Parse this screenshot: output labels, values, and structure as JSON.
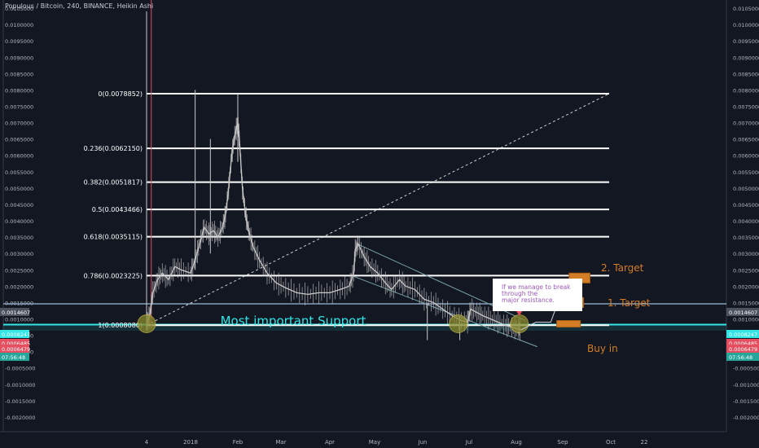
{
  "header": {
    "title": "Populous / Bitcoin, 240, BINANCE, Heikin Ashi"
  },
  "colors": {
    "background": "#131722",
    "text": "#b2b5be",
    "axis_line": "#363a45",
    "candle": "#c9c9c9",
    "fib_line": "#ffffff",
    "support": "#33e5e5",
    "target_box": "#d47d27",
    "channel": "#7aa3a7",
    "note_text": "#9b59b6",
    "label_bg": "#4c525e",
    "label_red": "#e44e5f",
    "label_green": "#26a69a",
    "marker": "#8a8a2a"
  },
  "axes": {
    "y_ticks": [
      "0.0105000",
      "0.0100000",
      "0.0095000",
      "0.0090000",
      "0.0085000",
      "0.0080000",
      "0.0075000",
      "0.0070000",
      "0.0065000",
      "0.0060000",
      "0.0055000",
      "0.0050000",
      "0.0045000",
      "0.0040000",
      "0.0035000",
      "0.0030000",
      "0.0025000",
      "0.0020000",
      "0.0015000",
      "0.0010000",
      "0.0005000",
      "0.0000000",
      "-0.0005000",
      "-0.0010000",
      "-0.0015000",
      "-0.0020000"
    ],
    "x_ticks": [
      "4",
      "2018",
      "Feb",
      "Mar",
      "Apr",
      "May",
      "Jun",
      "Jul",
      "Aug",
      "Sep",
      "Oct",
      "22"
    ],
    "price_labels": [
      "0.0014607",
      "0.0008247",
      "0.0006485",
      "0.0006479",
      "07:56:48"
    ]
  },
  "chart_data": {
    "type": "line",
    "xlabel": "",
    "ylabel": "",
    "ylim": [
      -0.00215,
      0.0106
    ],
    "x_domain": [
      "2017-12-04",
      "2018-10-22"
    ],
    "x_tick_dates": [
      "2017-12-04",
      "2018-01-01",
      "2018-02-01",
      "2018-03-01",
      "2018-04-01",
      "2018-05-01",
      "2018-06-01",
      "2018-07-01",
      "2018-08-01",
      "2018-09-01",
      "2018-10-01",
      "2018-10-22"
    ],
    "price_path": [
      [
        "2017-12-04",
        0.00085
      ],
      [
        "2017-12-06",
        0.0011
      ],
      [
        "2017-12-08",
        0.0018
      ],
      [
        "2017-12-11",
        0.0022
      ],
      [
        "2017-12-14",
        0.0024
      ],
      [
        "2017-12-18",
        0.0022
      ],
      [
        "2017-12-22",
        0.0026
      ],
      [
        "2017-12-26",
        0.0025
      ],
      [
        "2018-01-01",
        0.0024
      ],
      [
        "2018-01-04",
        0.0028
      ],
      [
        "2018-01-07",
        0.0033
      ],
      [
        "2018-01-10",
        0.0038
      ],
      [
        "2018-01-13",
        0.0036
      ],
      [
        "2018-01-16",
        0.0037
      ],
      [
        "2018-01-19",
        0.0035
      ],
      [
        "2018-01-22",
        0.0038
      ],
      [
        "2018-01-24",
        0.0042
      ],
      [
        "2018-01-26",
        0.005
      ],
      [
        "2018-01-28",
        0.006
      ],
      [
        "2018-01-30",
        0.0066
      ],
      [
        "2018-02-01",
        0.007
      ],
      [
        "2018-02-02",
        0.0065
      ],
      [
        "2018-02-04",
        0.005
      ],
      [
        "2018-02-06",
        0.0042
      ],
      [
        "2018-02-08",
        0.0037
      ],
      [
        "2018-02-11",
        0.0032
      ],
      [
        "2018-02-15",
        0.0028
      ],
      [
        "2018-02-20",
        0.0024
      ],
      [
        "2018-02-26",
        0.0021
      ],
      [
        "2018-03-04",
        0.00195
      ],
      [
        "2018-03-11",
        0.0018
      ],
      [
        "2018-03-18",
        0.00175
      ],
      [
        "2018-03-25",
        0.0018
      ],
      [
        "2018-04-01",
        0.0018
      ],
      [
        "2018-04-08",
        0.0019
      ],
      [
        "2018-04-14",
        0.002
      ],
      [
        "2018-04-17",
        0.0024
      ],
      [
        "2018-04-18",
        0.0031
      ],
      [
        "2018-04-20",
        0.0033
      ],
      [
        "2018-04-24",
        0.0029
      ],
      [
        "2018-04-28",
        0.0026
      ],
      [
        "2018-05-03",
        0.0024
      ],
      [
        "2018-05-08",
        0.0021
      ],
      [
        "2018-05-12",
        0.0019
      ],
      [
        "2018-05-17",
        0.0022
      ],
      [
        "2018-05-21",
        0.002
      ],
      [
        "2018-05-27",
        0.0019
      ],
      [
        "2018-06-02",
        0.0016
      ],
      [
        "2018-06-08",
        0.0015
      ],
      [
        "2018-06-14",
        0.0013
      ],
      [
        "2018-06-20",
        0.0011
      ],
      [
        "2018-06-26",
        0.00095
      ],
      [
        "2018-06-30",
        0.0009
      ],
      [
        "2018-07-02",
        0.0013
      ],
      [
        "2018-07-06",
        0.0012
      ],
      [
        "2018-07-10",
        0.0011
      ],
      [
        "2018-07-15",
        0.001
      ],
      [
        "2018-07-20",
        0.0009
      ],
      [
        "2018-07-25",
        0.0008
      ],
      [
        "2018-07-29",
        0.00075
      ],
      [
        "2018-08-02",
        0.0007
      ],
      [
        "2018-08-04",
        0.00068
      ]
    ],
    "spikes": [
      {
        "date": "2017-12-04",
        "high": 0.0104,
        "low": 0.00065
      },
      {
        "date": "2017-12-07",
        "high": 0.0108,
        "low": 0.0007
      },
      {
        "date": "2018-01-04",
        "high": 0.008,
        "low": 0.0025
      },
      {
        "date": "2018-01-14",
        "high": 0.0065,
        "low": 0.003
      },
      {
        "date": "2018-02-01",
        "high": 0.0079,
        "low": 0.0058
      },
      {
        "date": "2018-06-04",
        "high": 0.0015,
        "low": 0.00035
      },
      {
        "date": "2018-06-25",
        "high": 0.0011,
        "low": 0.00035
      }
    ],
    "fibonacci": {
      "x_start": "2017-12-04",
      "x_end": "2018-09-30",
      "levels": [
        {
          "label": "0(0.0078852)",
          "value": 0.0078852
        },
        {
          "label": "0.236(0.0062150)",
          "value": 0.006215
        },
        {
          "label": "0.382(0.0051817)",
          "value": 0.0051817
        },
        {
          "label": "0.5(0.0043466)",
          "value": 0.0043466
        },
        {
          "label": "0.618(0.0035115)",
          "value": 0.0035115
        },
        {
          "label": "0.786(0.0023225)",
          "value": 0.0023225
        },
        {
          "label": "1(0.0008080)",
          "value": 0.000808
        }
      ]
    },
    "support_lines": [
      0.0014607,
      0.0008247
    ],
    "support_band": [
      0.00064,
      0.00084
    ],
    "trend_dashed": {
      "from": [
        "2017-12-04",
        0.000808
      ],
      "to": [
        "2018-09-30",
        0.0078852
      ]
    },
    "channel": [
      {
        "from": [
          "2018-04-19",
          0.0033
        ],
        "to": [
          "2018-08-07",
          0.00095
        ]
      },
      {
        "from": [
          "2018-04-17",
          0.0023
        ],
        "to": [
          "2018-08-15",
          0.00015
        ]
      }
    ],
    "projection_path": [
      [
        "2018-08-04",
        0.00066
      ],
      [
        "2018-08-14",
        0.0009
      ],
      [
        "2018-08-24",
        0.0009
      ],
      [
        "2018-08-28",
        0.0014
      ],
      [
        "2018-09-05",
        0.00225
      ]
    ],
    "markers": [
      {
        "date": "2017-12-04",
        "value": 0.00085
      },
      {
        "date": "2018-06-24",
        "value": 0.00085
      },
      {
        "date": "2018-08-03",
        "value": 0.00085
      }
    ],
    "boxes": [
      {
        "name": "buy-zone",
        "x0": "2018-08-28",
        "x1": "2018-09-12",
        "y0": 0.00075,
        "y1": 0.00095
      },
      {
        "name": "target-1",
        "x0": "2018-09-01",
        "x1": "2018-09-14",
        "y0": 0.00135,
        "y1": 0.00165
      },
      {
        "name": "target-2",
        "x0": "2018-09-05",
        "x1": "2018-09-18",
        "y0": 0.0021,
        "y1": 0.0024
      }
    ],
    "annotations": {
      "support": "Most important Support",
      "target1": "1. Target",
      "target2": "2. Target",
      "buy": "Buy in",
      "note": [
        "If we manage to break",
        "through the",
        "major resistance."
      ]
    }
  }
}
